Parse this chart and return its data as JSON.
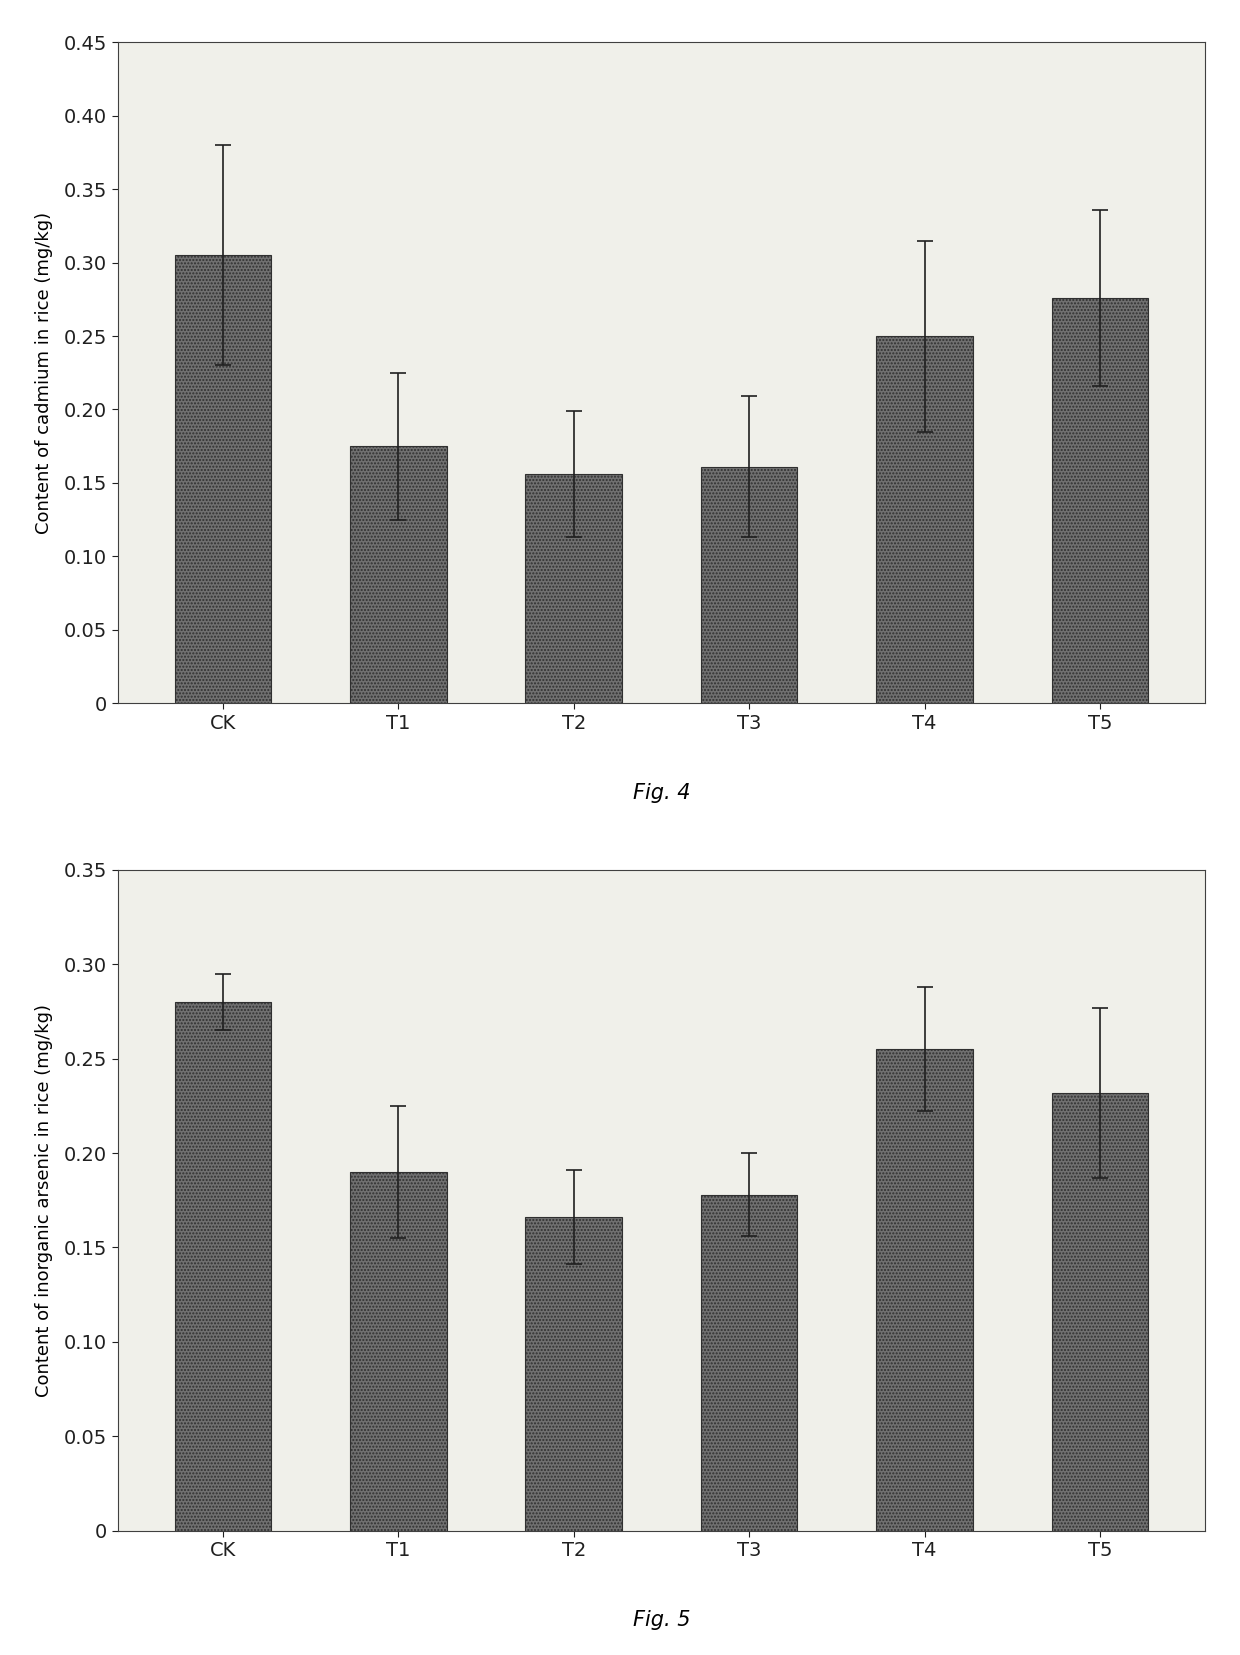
{
  "fig4": {
    "categories": [
      "CK",
      "T1",
      "T2",
      "T3",
      "T4",
      "T5"
    ],
    "values": [
      0.305,
      0.175,
      0.156,
      0.161,
      0.25,
      0.276
    ],
    "errors": [
      0.075,
      0.05,
      0.043,
      0.048,
      0.065,
      0.06
    ],
    "ylabel": "Content of cadmium in rice (mg/kg)",
    "ylim": [
      0,
      0.45
    ],
    "yticks": [
      0,
      0.05,
      0.1,
      0.15,
      0.2,
      0.25,
      0.3,
      0.35,
      0.4,
      0.45
    ],
    "caption": "Fig. 4"
  },
  "fig5": {
    "categories": [
      "CK",
      "T1",
      "T2",
      "T3",
      "T4",
      "T5"
    ],
    "values": [
      0.28,
      0.19,
      0.166,
      0.178,
      0.255,
      0.232
    ],
    "errors": [
      0.015,
      0.035,
      0.025,
      0.022,
      0.033,
      0.045
    ],
    "ylabel": "Content of inorganic arsenic in rice (mg/kg)",
    "ylim": [
      0,
      0.35
    ],
    "yticks": [
      0,
      0.05,
      0.1,
      0.15,
      0.2,
      0.25,
      0.3,
      0.35
    ],
    "caption": "Fig. 5"
  },
  "background_color": "#f0f0ea",
  "bar_color": "#707070",
  "bar_edge_color": "#303030",
  "bar_hatch": ".....",
  "error_color": "#202020",
  "font_size_tick": 14,
  "font_size_label": 13,
  "font_size_caption": 15,
  "bar_width": 0.55
}
